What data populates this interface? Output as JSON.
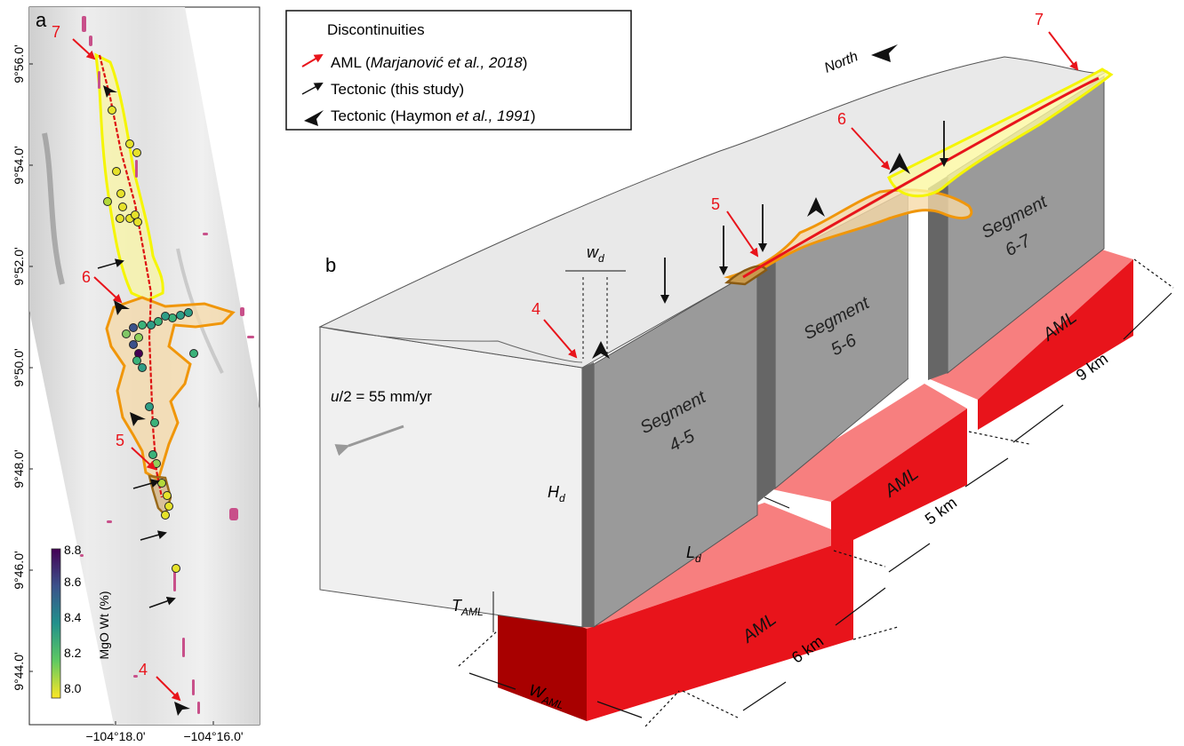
{
  "panel_a": {
    "label": "a",
    "lat_ticks": [
      "9°56.0'",
      "9°54.0'",
      "9°52.0'",
      "9°50.0'",
      "9°48.0'",
      "9°46.0'",
      "9°44.0'"
    ],
    "lon_ticks": [
      "−104°18.0'",
      "−104°16.0'"
    ],
    "discontinuity_numbers": [
      "7",
      "6",
      "5",
      "4"
    ],
    "colorbar": {
      "label": "MgO Wt (%)",
      "ticks": [
        "8.8",
        "8.6",
        "8.4",
        "8.2",
        "8.0"
      ]
    }
  },
  "legend": {
    "title": "Discontinuities",
    "aml_prefix": "AML (",
    "aml_citation": "Marjanović et al., 2018",
    "aml_suffix": ")",
    "tectonic_this": "Tectonic (this study)",
    "haymon_prefix": "Tectonic (Haymon ",
    "haymon_etal": "et al., 1991",
    "haymon_suffix": ")"
  },
  "panel_b": {
    "label": "b",
    "north": "North",
    "spreading_rate": "u/2 = 55 mm/yr",
    "discontinuity_numbers": [
      "4",
      "5",
      "6",
      "7"
    ],
    "segment_word": "Segment",
    "segments": [
      "4-5",
      "5-6",
      "6-7"
    ],
    "aml_label": "AML",
    "distances": [
      "6 km",
      "5 km",
      "9 km"
    ],
    "symbols": {
      "w": "w",
      "d": "d",
      "H": "H",
      "L": "L",
      "T": "T",
      "W": "W",
      "aml_sub": "AML"
    }
  },
  "colors": {
    "aml_red": "#e8141b",
    "aml_dark": "#a80000",
    "aml_light": "#f77f7f",
    "yellow_outline": "#f5f500",
    "orange_outline": "#f0960a",
    "wall_gray": "#9a9a9a",
    "block_gray": "#ececec"
  }
}
